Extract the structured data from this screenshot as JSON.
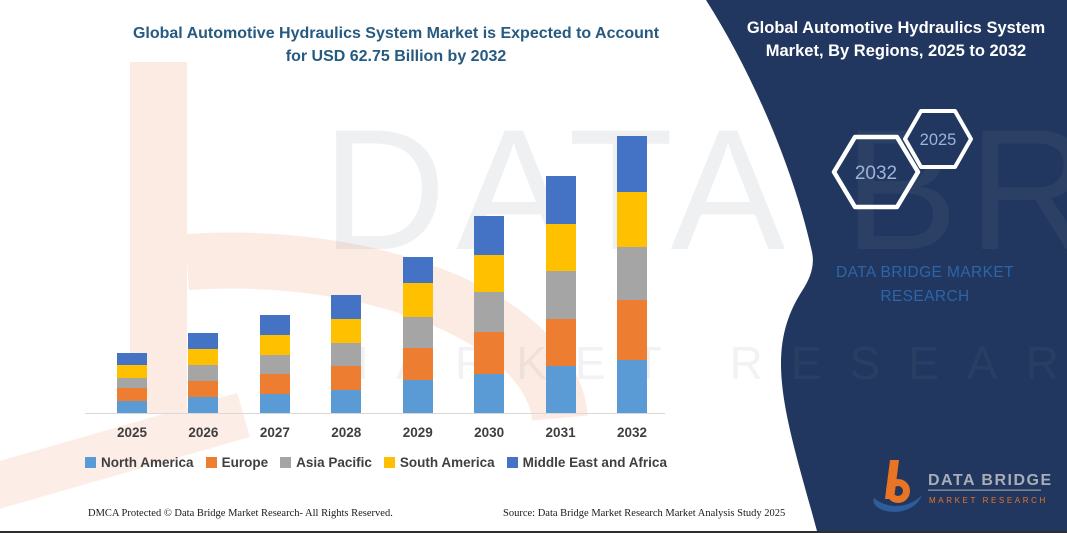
{
  "theme": {
    "panel_bg": "#21375f",
    "title_color": "#265a80",
    "text_dark": "#3f3f3f",
    "axis_line_color": "#d9d9d9",
    "watermark_peach": "#fcebe2"
  },
  "header": {
    "title_line1": "Global Automotive Hydraulics System Market is Expected to Account",
    "title_line2": "for USD 62.75 Billion by 2032"
  },
  "side_panel": {
    "title_line1": "Global Automotive Hydraulics System",
    "title_line2": "Market, By Regions, 2025 to 2032",
    "hexagon_back_label": "2032",
    "hexagon_front_label": "2025",
    "brand_line1": "DATA BRIDGE MARKET",
    "brand_line2": "RESEARCH"
  },
  "logo": {
    "name": "DATA BRIDGE",
    "subtitle": "MARKET RESEARCH",
    "orange": "#e87424",
    "blue": "#2d5d9b",
    "grey": "#a9adb6"
  },
  "watermark": {
    "big_text": "DATA BRID",
    "row_text": "MARKET RESEARCH"
  },
  "footer": {
    "left": "DMCA Protected © Data Bridge Market Research-  All Rights Reserved.",
    "right": "Source: Data Bridge Market Research  Market Analysis Study 2025"
  },
  "chart_data": {
    "type": "bar",
    "stacked": true,
    "title": "Global Automotive Hydraulics System Market is Expected to Account for USD 62.75 Billion by 2032",
    "xlabel": "",
    "ylabel": "",
    "value_unit": "USD Billion",
    "values_estimated": true,
    "anchor": "2032 total = 62.75 USD Billion",
    "grid": false,
    "legend_position": "bottom",
    "categories": [
      "2025",
      "2026",
      "2027",
      "2028",
      "2029",
      "2030",
      "2031",
      "2032"
    ],
    "series": [
      {
        "name": "North America",
        "color": "#5B9BD5",
        "values": [
          2.7,
          3.6,
          4.4,
          5.3,
          7.5,
          8.8,
          10.7,
          12.1
        ]
      },
      {
        "name": "Europe",
        "color": "#ED7D31",
        "values": [
          2.9,
          3.6,
          4.4,
          5.3,
          7.3,
          9.5,
          10.7,
          13.6
        ]
      },
      {
        "name": "Asia Pacific",
        "color": "#A5A5A5",
        "values": [
          2.3,
          3.6,
          4.4,
          5.3,
          7.0,
          9.1,
          10.7,
          11.8
        ]
      },
      {
        "name": "South America",
        "color": "#FFC000",
        "values": [
          2.9,
          3.6,
          4.4,
          5.3,
          7.7,
          8.4,
          10.7,
          12.6
        ]
      },
      {
        "name": "Middle East and Africa",
        "color": "#4472C4",
        "values": [
          2.7,
          3.7,
          4.6,
          5.5,
          5.9,
          8.8,
          10.9,
          12.65
        ]
      }
    ],
    "totals_by_year": [
      13.5,
      18.1,
      22.2,
      26.7,
      35.4,
      44.6,
      53.7,
      62.75
    ]
  }
}
